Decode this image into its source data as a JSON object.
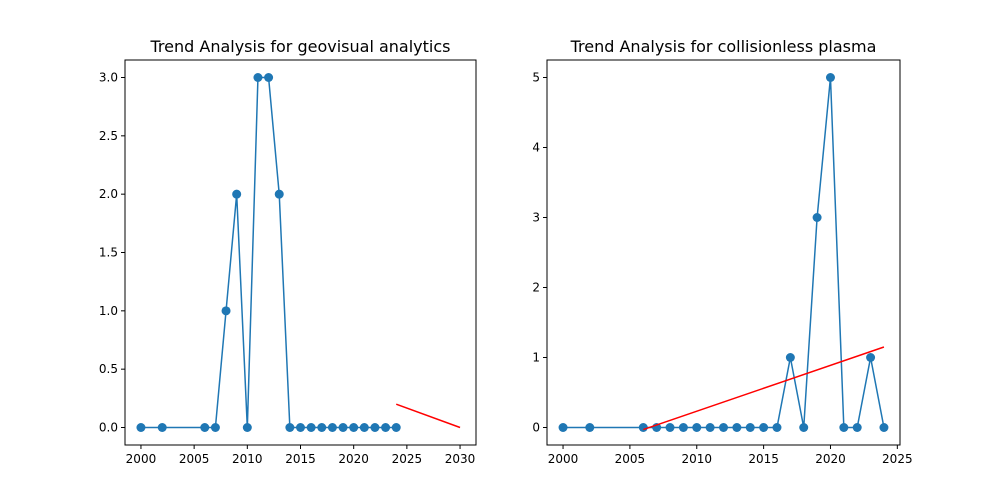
{
  "chart_data": [
    {
      "type": "line",
      "title": "Trend Analysis for geovisual analytics",
      "xlabel": "",
      "ylabel": "",
      "xlim": [
        1998.5,
        2031.5
      ],
      "ylim": [
        -0.15,
        3.15
      ],
      "xticks": [
        2000,
        2005,
        2010,
        2015,
        2020,
        2025,
        2030
      ],
      "xtick_labels": [
        "2000",
        "2005",
        "2010",
        "2015",
        "2020",
        "2025",
        "2030"
      ],
      "yticks": [
        0.0,
        0.5,
        1.0,
        1.5,
        2.0,
        2.5,
        3.0
      ],
      "ytick_labels": [
        "0.0",
        "0.5",
        "1.0",
        "1.5",
        "2.0",
        "2.5",
        "3.0"
      ],
      "grid": false,
      "series": [
        {
          "kind": "line-markers",
          "color": "#1f77b4",
          "x": [
            2000,
            2002,
            2006,
            2007,
            2008,
            2009,
            2010,
            2011,
            2012,
            2013,
            2014,
            2015,
            2016,
            2017,
            2018,
            2019,
            2020,
            2021,
            2022,
            2023,
            2024
          ],
          "y": [
            0,
            0,
            0,
            0,
            1,
            2,
            0,
            3,
            3,
            2,
            0,
            0,
            0,
            0,
            0,
            0,
            0,
            0,
            0,
            0,
            0
          ]
        },
        {
          "kind": "line",
          "color": "#ff0000",
          "x": [
            2024,
            2030
          ],
          "y": [
            0.2,
            0.0
          ]
        }
      ]
    },
    {
      "type": "line",
      "title": "Trend Analysis for collisionless plasma",
      "xlabel": "",
      "ylabel": "",
      "xlim": [
        1998.8,
        2025.2
      ],
      "ylim": [
        -0.25,
        5.25
      ],
      "xticks": [
        2000,
        2005,
        2010,
        2015,
        2020,
        2025
      ],
      "xtick_labels": [
        "2000",
        "2005",
        "2010",
        "2015",
        "2020",
        "2025"
      ],
      "yticks": [
        0,
        1,
        2,
        3,
        4,
        5
      ],
      "ytick_labels": [
        "0",
        "1",
        "2",
        "3",
        "4",
        "5"
      ],
      "grid": false,
      "series": [
        {
          "kind": "line-markers",
          "color": "#1f77b4",
          "x": [
            2000,
            2002,
            2006,
            2007,
            2008,
            2009,
            2010,
            2011,
            2012,
            2013,
            2014,
            2015,
            2016,
            2017,
            2018,
            2019,
            2020,
            2021,
            2022,
            2023,
            2024
          ],
          "y": [
            0,
            0,
            0,
            0,
            0,
            0,
            0,
            0,
            0,
            0,
            0,
            0,
            0,
            1,
            0,
            3,
            5,
            0,
            0,
            1,
            0
          ]
        },
        {
          "kind": "line",
          "color": "#ff0000",
          "x": [
            2006,
            2024
          ],
          "y": [
            -0.03,
            1.15
          ]
        }
      ]
    }
  ]
}
